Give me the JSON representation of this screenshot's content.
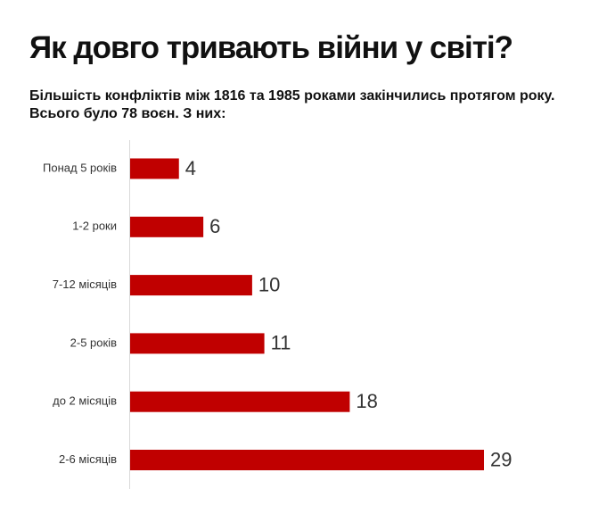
{
  "title": "Як довго тривають війни у світі?",
  "subtitle_lines": [
    "Більшість конфліктів між 1816 та 1985 роками закінчились протягом року.",
    "Всього було 78 воєн. З них:"
  ],
  "colors": {
    "bar": "#c00000",
    "axis": "#d9d9d9",
    "text": "#333333"
  },
  "chart_data": {
    "type": "bar",
    "orientation": "horizontal",
    "categories": [
      "Понад 5 років",
      "1-2 роки",
      "7-12 місяців",
      "2-5 років",
      "до 2 місяців",
      "2-6 місяців"
    ],
    "values": [
      4,
      6,
      10,
      11,
      18,
      29
    ],
    "xlim": [
      0,
      29
    ],
    "grid": false,
    "legend": "none"
  }
}
